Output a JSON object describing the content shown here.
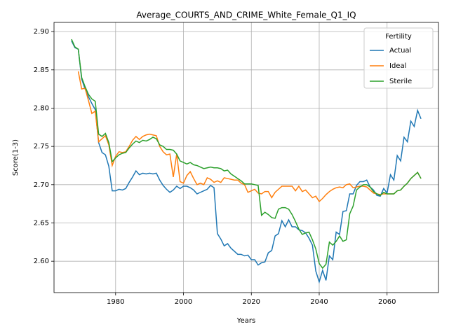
{
  "chart_data": {
    "type": "line",
    "title": "Average_COURTS_AND_CRIME_White_Female_Q1_IQ",
    "x_label": "Years",
    "y_label": "Score(1-3)",
    "x": [
      1967,
      1968,
      1969,
      1970,
      1971,
      1972,
      1973,
      1974,
      1975,
      1976,
      1977,
      1978,
      1979,
      1980,
      1981,
      1982,
      1983,
      1984,
      1985,
      1986,
      1987,
      1988,
      1989,
      1990,
      1991,
      1992,
      1993,
      1994,
      1995,
      1996,
      1997,
      1998,
      1999,
      2000,
      2001,
      2002,
      2003,
      2004,
      2005,
      2006,
      2007,
      2008,
      2009,
      2010,
      2011,
      2012,
      2013,
      2014,
      2015,
      2016,
      2017,
      2018,
      2019,
      2020,
      2021,
      2022,
      2023,
      2024,
      2025,
      2026,
      2027,
      2028,
      2029,
      2030,
      2031,
      2032,
      2033,
      2034,
      2035,
      2036,
      2037,
      2038,
      2039,
      2040,
      2041,
      2042,
      2043,
      2044,
      2045,
      2046,
      2047,
      2048,
      2049,
      2050,
      2051,
      2052,
      2053,
      2054,
      2055,
      2056,
      2057,
      2058,
      2059,
      2060,
      2061,
      2062,
      2063,
      2064,
      2065,
      2066,
      2067,
      2068,
      2069,
      2070
    ],
    "series": [
      {
        "name": "Actual",
        "color": "#1f77b4",
        "values": [
          2.888,
          2.879,
          2.877,
          2.838,
          2.825,
          2.815,
          2.806,
          2.798,
          2.755,
          2.742,
          2.739,
          2.724,
          2.692,
          2.692,
          2.694,
          2.693,
          2.695,
          2.703,
          2.71,
          2.718,
          2.713,
          2.715,
          2.714,
          2.715,
          2.714,
          2.715,
          2.706,
          2.699,
          2.694,
          2.69,
          2.693,
          2.698,
          2.695,
          2.698,
          2.698,
          2.696,
          2.693,
          2.688,
          2.69,
          2.692,
          2.694,
          2.699,
          2.696,
          2.636,
          2.629,
          2.62,
          2.623,
          2.617,
          2.613,
          2.609,
          2.609,
          2.607,
          2.608,
          2.602,
          2.602,
          2.595,
          2.598,
          2.599,
          2.611,
          2.614,
          2.633,
          2.636,
          2.653,
          2.645,
          2.654,
          2.645,
          2.645,
          2.641,
          2.64,
          2.637,
          2.63,
          2.621,
          2.587,
          2.573,
          2.588,
          2.575,
          2.607,
          2.602,
          2.638,
          2.635,
          2.665,
          2.666,
          2.688,
          2.688,
          2.699,
          2.704,
          2.704,
          2.706,
          2.697,
          2.693,
          2.686,
          2.685,
          2.695,
          2.689,
          2.713,
          2.706,
          2.738,
          2.731,
          2.762,
          2.756,
          2.783,
          2.776,
          2.797,
          2.786
        ]
      },
      {
        "name": "Ideal",
        "color": "#ff7f0e",
        "values": [
          null,
          null,
          2.848,
          2.825,
          2.826,
          2.81,
          2.793,
          2.796,
          2.756,
          2.76,
          2.764,
          2.752,
          2.725,
          2.737,
          2.743,
          2.742,
          2.743,
          2.75,
          2.758,
          2.763,
          2.759,
          2.763,
          2.765,
          2.766,
          2.765,
          2.764,
          2.75,
          2.743,
          2.739,
          2.74,
          2.71,
          2.74,
          2.704,
          2.702,
          2.712,
          2.717,
          2.708,
          2.7,
          2.702,
          2.7,
          2.709,
          2.707,
          2.703,
          2.705,
          2.703,
          2.709,
          2.708,
          2.707,
          2.706,
          2.706,
          2.702,
          2.7,
          2.69,
          2.692,
          2.694,
          2.689,
          2.688,
          2.691,
          2.691,
          2.683,
          2.69,
          2.694,
          2.698,
          2.698,
          2.698,
          2.698,
          2.692,
          2.698,
          2.691,
          2.693,
          2.688,
          2.683,
          2.685,
          2.678,
          2.682,
          2.687,
          2.691,
          2.694,
          2.696,
          2.697,
          2.696,
          2.7,
          2.701,
          2.696,
          2.697,
          2.698,
          2.698,
          2.697,
          2.693,
          2.689,
          2.688,
          2.687,
          2.688,
          2.688,
          2.688,
          2.688,
          2.692,
          2.693,
          2.698,
          2.702,
          2.708,
          2.712,
          2.716,
          2.708
        ]
      },
      {
        "name": "Sterile",
        "color": "#2ca02c",
        "values": [
          2.89,
          2.88,
          2.877,
          2.84,
          2.828,
          2.818,
          2.812,
          2.809,
          2.766,
          2.763,
          2.767,
          2.755,
          2.73,
          2.735,
          2.739,
          2.741,
          2.742,
          2.748,
          2.753,
          2.757,
          2.755,
          2.758,
          2.757,
          2.759,
          2.762,
          2.76,
          2.752,
          2.75,
          2.746,
          2.746,
          2.745,
          2.74,
          2.731,
          2.729,
          2.727,
          2.729,
          2.726,
          2.725,
          2.723,
          2.721,
          2.722,
          2.723,
          2.722,
          2.722,
          2.721,
          2.718,
          2.719,
          2.714,
          2.711,
          2.708,
          2.705,
          2.701,
          2.701,
          2.701,
          2.7,
          2.699,
          2.66,
          2.664,
          2.661,
          2.657,
          2.656,
          2.668,
          2.67,
          2.67,
          2.668,
          2.661,
          2.652,
          2.642,
          2.635,
          2.637,
          2.638,
          2.628,
          2.616,
          2.597,
          2.591,
          2.596,
          2.625,
          2.621,
          2.626,
          2.633,
          2.626,
          2.628,
          2.662,
          2.672,
          2.693,
          2.697,
          2.7,
          2.7,
          2.697,
          2.691,
          2.688,
          2.686,
          2.69,
          2.688,
          2.688,
          2.688,
          2.692,
          2.693,
          2.698,
          2.702,
          2.708,
          2.712,
          2.716,
          2.708
        ]
      }
    ],
    "xlim": [
      1961.85,
      2075.15
    ],
    "xticks": [
      1980,
      2000,
      2020,
      2040,
      2060
    ],
    "ylim": [
      2.559,
      2.912
    ],
    "yticks": [
      {
        "value": 2.6,
        "label": "2.60"
      },
      {
        "value": 2.65,
        "label": "2.65"
      },
      {
        "value": 2.7,
        "label": "2.70"
      },
      {
        "value": 2.75,
        "label": "2.75"
      },
      {
        "value": 2.8,
        "label": "2.80"
      },
      {
        "value": 2.85,
        "label": "2.85"
      },
      {
        "value": 2.9,
        "label": "2.90"
      }
    ],
    "grid": true,
    "legend_title": "Fertility",
    "legend": "upper right"
  }
}
